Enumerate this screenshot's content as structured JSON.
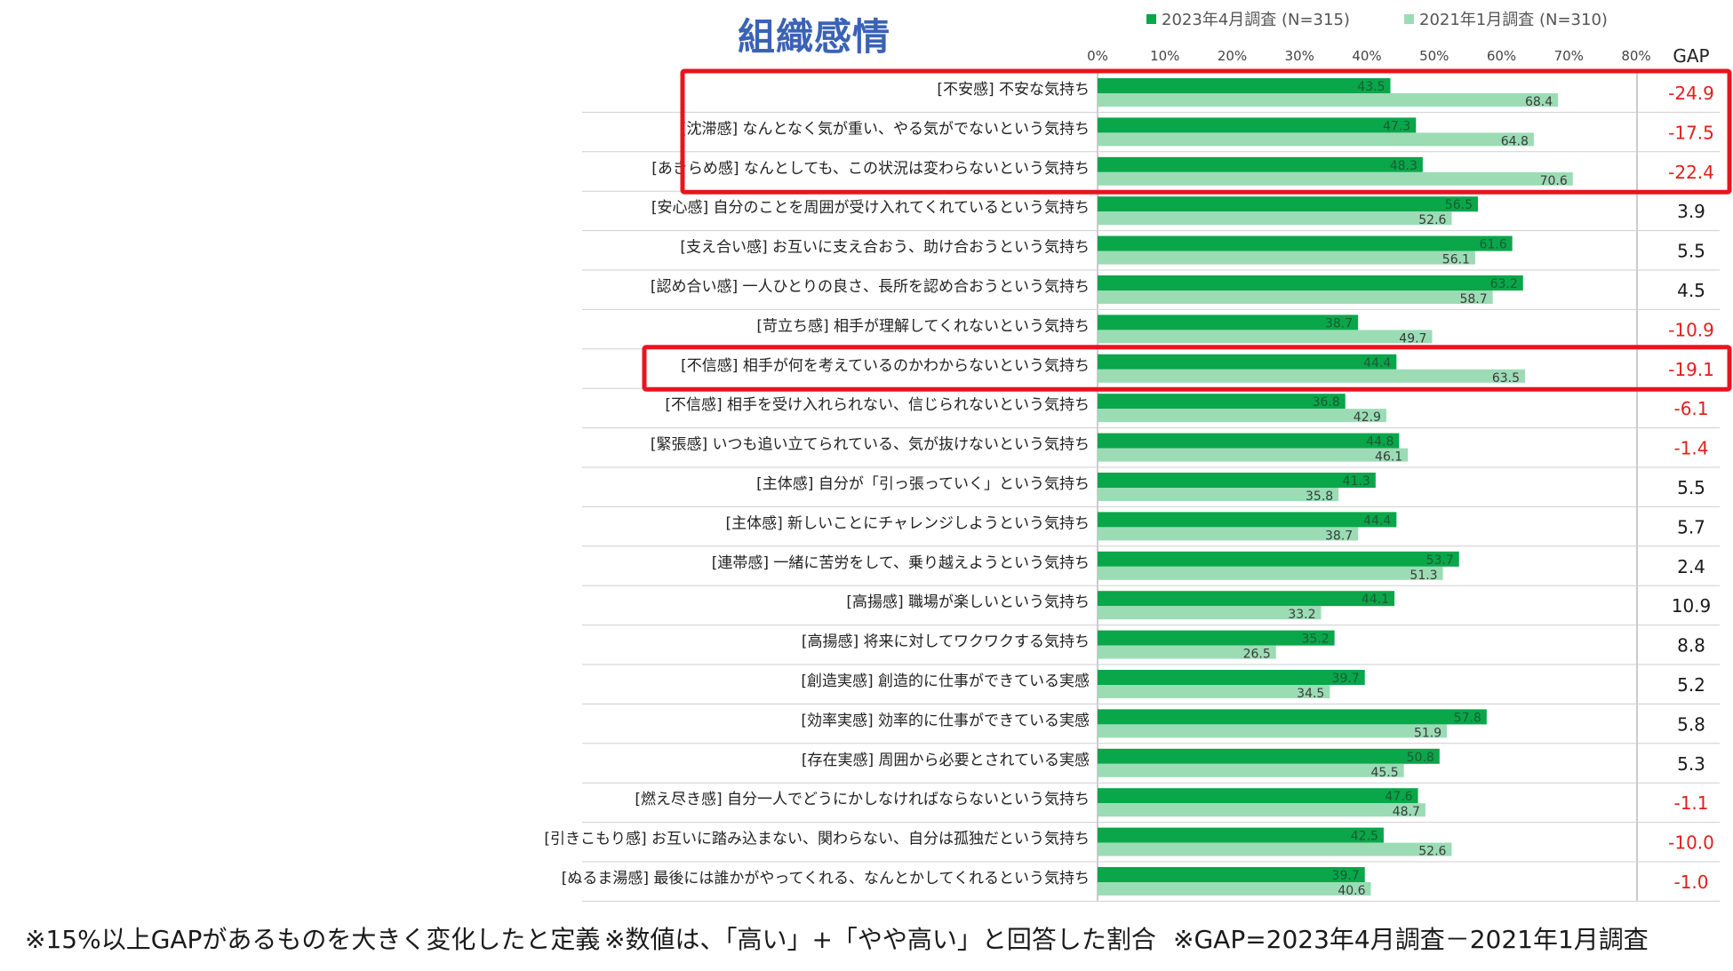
{
  "page_title": "組織感情",
  "notes": [
    "※15%以上GAPがあるものを大きく変化したと定義",
    "※数値は、「高い」+「やや高い」と回答した割合",
    "※GAP=2023年4月調査－2021年1月調査"
  ],
  "colors": {
    "series_2023": "#0aa64a",
    "series_2021": "#9bdcb5",
    "gap_negative": "#e0201b",
    "gap_positive": "#1a1a1a",
    "highlight": "#e8141e",
    "title": "#3a63b6"
  },
  "chart_data": {
    "type": "bar",
    "orientation": "horizontal",
    "title": "組織感情",
    "xlim": [
      0,
      80
    ],
    "x_ticks": [
      "0%",
      "10%",
      "20%",
      "30%",
      "40%",
      "50%",
      "60%",
      "70%",
      "80%"
    ],
    "gap_header": "GAP",
    "legend_position": "top",
    "highlighted_categories": [
      0,
      1,
      2,
      7
    ],
    "categories": [
      "[不安感] 不安な気持ち",
      "[沈滞感] なんとなく気が重い、やる気がでないという気持ち",
      "[あきらめ感] なんとしても、この状況は変わらないという気持ち",
      "[安心感] 自分のことを周囲が受け入れてくれているという気持ち",
      "[支え合い感] お互いに支え合おう、助け合おうという気持ち",
      "[認め合い感] 一人ひとりの良さ、長所を認め合おうという気持ち",
      "[苛立ち感] 相手が理解してくれないという気持ち",
      "[不信感] 相手が何を考えているのかわからないという気持ち",
      "[不信感] 相手を受け入れられない、信じられないという気持ち",
      "[緊張感] いつも追い立てられている、気が抜けないという気持ち",
      "[主体感] 自分が「引っ張っていく」という気持ち",
      "[主体感] 新しいことにチャレンジしようという気持ち",
      "[連帯感] 一緒に苦労をして、乗り越えようという気持ち",
      "[高揚感] 職場が楽しいという気持ち",
      "[高揚感] 将来に対してワクワクする気持ち",
      "[創造実感] 創造的に仕事ができている実感",
      "[効率実感] 効率的に仕事ができている実感",
      "[存在実感] 周囲から必要とされている実感",
      "[燃え尽き感] 自分一人でどうにかしなければならないという気持ち",
      "[引きこもり感] お互いに踏み込まない、関わらない、自分は孤独だという気持ち",
      "[ぬるま湯感] 最後には誰かがやってくれる、なんとかしてくれるという気持ち"
    ],
    "series": [
      {
        "name": "2023年4月調査 (N=315)",
        "values": [
          43.5,
          47.3,
          48.3,
          56.5,
          61.6,
          63.2,
          38.7,
          44.4,
          36.8,
          44.8,
          41.3,
          44.4,
          53.7,
          44.1,
          35.2,
          39.7,
          57.8,
          50.8,
          47.6,
          42.5,
          39.7
        ]
      },
      {
        "name": "2021年1月調査 (N=310)",
        "values": [
          68.4,
          64.8,
          70.6,
          52.6,
          56.1,
          58.7,
          49.7,
          63.5,
          42.9,
          46.1,
          35.8,
          38.7,
          51.3,
          33.2,
          26.5,
          34.5,
          51.9,
          45.5,
          48.7,
          52.6,
          40.6
        ]
      }
    ],
    "gap": [
      "-24.9",
      "-17.5",
      "-22.4",
      "3.9",
      "5.5",
      "4.5",
      "-10.9",
      "-19.1",
      "-6.1",
      "-1.4",
      "5.5",
      "5.7",
      "2.4",
      "10.9",
      "8.8",
      "5.2",
      "5.8",
      "5.3",
      "-1.1",
      "-10.0",
      "-1.0"
    ]
  }
}
